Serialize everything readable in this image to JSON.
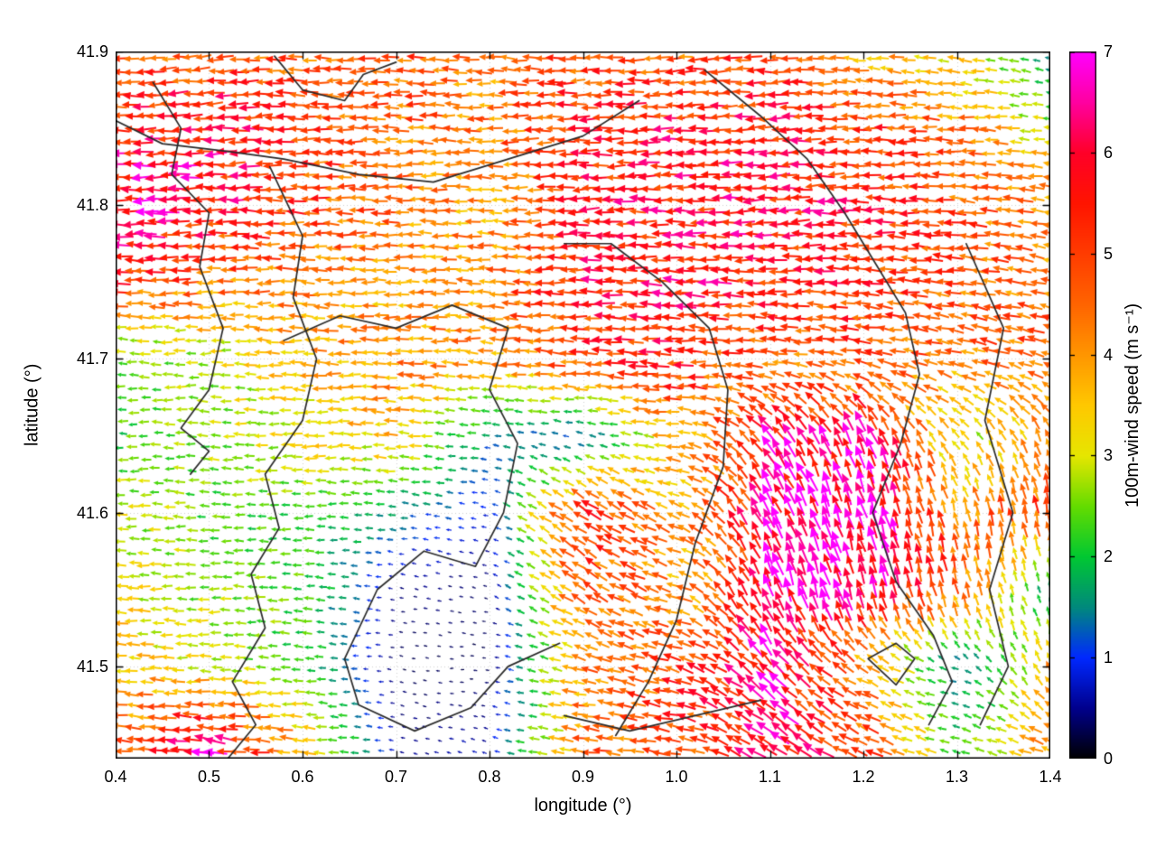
{
  "figure": {
    "background": "#ffffff"
  },
  "chart_data": {
    "type": "quiver",
    "title": "",
    "xlabel": "longitude (°)",
    "ylabel": "latitude (°)",
    "colorbar_label": "100m-wind speed (m s⁻¹)",
    "xlim": [
      0.4,
      1.4
    ],
    "ylim": [
      41.44,
      41.9
    ],
    "grid": "dotted",
    "xticks": [
      0.4,
      0.5,
      0.6,
      0.7,
      0.8,
      0.9,
      1.0,
      1.1,
      1.2,
      1.3,
      1.4
    ],
    "xtick_labels": [
      "0.4",
      "0.5",
      "0.6",
      "0.7",
      "0.8",
      "0.9",
      "1.0",
      "1.1",
      "1.2",
      "1.3",
      "1.4"
    ],
    "yticks": [
      41.5,
      41.6,
      41.7,
      41.8,
      41.9
    ],
    "ytick_labels": [
      "41.5",
      "41.6",
      "41.7",
      "41.8",
      "41.9"
    ],
    "colorbar": {
      "min": 0,
      "max": 7,
      "ticks": [
        0,
        1,
        2,
        3,
        4,
        5,
        6,
        7
      ],
      "tick_labels": [
        "0",
        "1",
        "2",
        "3",
        "4",
        "5",
        "6",
        "7"
      ],
      "stops": [
        [
          0.0,
          "#000000"
        ],
        [
          0.5,
          "#00008c"
        ],
        [
          1.0,
          "#0028ff"
        ],
        [
          1.5,
          "#00897d"
        ],
        [
          2.0,
          "#00c832"
        ],
        [
          2.5,
          "#64dc00"
        ],
        [
          3.0,
          "#e6e600"
        ],
        [
          3.5,
          "#ffc800"
        ],
        [
          4.0,
          "#ff9600"
        ],
        [
          4.5,
          "#ff6400"
        ],
        [
          5.0,
          "#ff3c00"
        ],
        [
          5.5,
          "#ff1400"
        ],
        [
          6.0,
          "#ff0028"
        ],
        [
          6.5,
          "#ff00a0"
        ],
        [
          7.0,
          "#ff00ff"
        ]
      ]
    },
    "wind_grid": {
      "lons": [
        0.4,
        0.5,
        0.6,
        0.7,
        0.8,
        0.9,
        1.0,
        1.1,
        1.2,
        1.3,
        1.4
      ],
      "lats": [
        41.45,
        41.5,
        41.55,
        41.6,
        41.65,
        41.7,
        41.75,
        41.8,
        41.85,
        41.9
      ],
      "u": [
        [
          -4.4,
          -6.3,
          -3.6,
          -0.5,
          -0.6,
          -4.4,
          -4.8,
          -5.0,
          -4.5,
          -2.0,
          -4.0
        ],
        [
          -3.6,
          -3.0,
          -2.2,
          -0.25,
          -0.3,
          -4.0,
          -5.0,
          -4.5,
          -3.5,
          -1.3,
          -1.5
        ],
        [
          -3.2,
          -2.6,
          -2.3,
          -0.5,
          -0.3,
          -4.2,
          -3.8,
          -2.2,
          -1.8,
          -1.2,
          -0.5
        ],
        [
          -3.0,
          -2.4,
          -2.2,
          -1.5,
          -0.8,
          -4.5,
          -3.5,
          -2.8,
          -2.0,
          -1.0,
          -1.0
        ],
        [
          -2.2,
          -2.6,
          -3.2,
          -3.6,
          -1.4,
          -1.0,
          -4.0,
          -3.5,
          -2.5,
          -2.0,
          -1.5
        ],
        [
          -2.3,
          -2.8,
          -3.6,
          -4.2,
          -4.0,
          -5.0,
          -5.4,
          -4.4,
          -4.8,
          -4.2,
          -4.5
        ],
        [
          -5.2,
          -4.5,
          -4.2,
          -3.8,
          -4.3,
          -5.5,
          -5.8,
          -5.5,
          -5.2,
          -4.6,
          -4.2
        ],
        [
          -6.5,
          -5.8,
          -5.0,
          -4.4,
          -3.8,
          -5.5,
          -5.6,
          -5.8,
          -5.4,
          -4.8,
          -4.2
        ],
        [
          -5.5,
          -5.8,
          -5.0,
          -4.5,
          -4.3,
          -5.3,
          -5.5,
          -5.5,
          -5.2,
          -4.3,
          -2.8
        ],
        [
          -4.5,
          -5.0,
          -4.5,
          -4.8,
          -4.2,
          -5.0,
          -4.5,
          -5.2,
          -3.8,
          -3.2,
          -1.2
        ]
      ],
      "v": [
        [
          0.4,
          0.8,
          0.3,
          0.1,
          0.2,
          0.6,
          0.8,
          3.5,
          2.2,
          0.5,
          1.5
        ],
        [
          0.3,
          0.0,
          0.2,
          0.05,
          0.0,
          1.0,
          1.5,
          4.5,
          1.8,
          0.3,
          3.5
        ],
        [
          0.2,
          0.0,
          0.2,
          0.1,
          0.1,
          2.8,
          1.0,
          6.5,
          6.4,
          4.6,
          1.5
        ],
        [
          0.0,
          0.2,
          0.0,
          0.2,
          0.2,
          3.0,
          1.5,
          5.8,
          6.5,
          4.3,
          4.8
        ],
        [
          0.0,
          0.2,
          0.0,
          0.3,
          0.2,
          0.3,
          0.5,
          5.0,
          6.0,
          2.0,
          4.0
        ],
        [
          0.2,
          0.0,
          0.2,
          0.0,
          0.3,
          0.3,
          0.2,
          0.4,
          0.8,
          1.2,
          1.5
        ],
        [
          0.3,
          0.0,
          0.2,
          0.0,
          0.2,
          0.0,
          0.5,
          0.0,
          0.3,
          0.6,
          0.8
        ],
        [
          0.0,
          0.0,
          0.2,
          0.0,
          0.2,
          -0.2,
          0.0,
          -0.3,
          0.0,
          0.4,
          0.5
        ],
        [
          0.0,
          -0.3,
          0.0,
          0.2,
          0.0,
          -0.2,
          0.0,
          -0.3,
          0.0,
          0.3,
          0.3
        ],
        [
          0.0,
          -0.5,
          0.3,
          0.0,
          0.4,
          0.0,
          -0.3,
          0.0,
          0.5,
          0.5,
          0.5
        ]
      ]
    },
    "contours": [
      [
        [
          0.44,
          41.88
        ],
        [
          0.47,
          41.85
        ],
        [
          0.46,
          41.82
        ],
        [
          0.5,
          41.795
        ],
        [
          0.49,
          41.76
        ],
        [
          0.515,
          41.72
        ],
        [
          0.5,
          41.68
        ],
        [
          0.47,
          41.655
        ],
        [
          0.5,
          41.64
        ],
        [
          0.48,
          41.625
        ]
      ],
      [
        [
          0.4,
          41.855
        ],
        [
          0.45,
          41.84
        ],
        [
          0.52,
          41.835
        ],
        [
          0.58,
          41.83
        ],
        [
          0.66,
          41.82
        ],
        [
          0.74,
          41.815
        ],
        [
          0.82,
          41.83
        ],
        [
          0.9,
          41.845
        ],
        [
          0.96,
          41.868
        ]
      ],
      [
        [
          0.57,
          41.897
        ],
        [
          0.6,
          41.875
        ],
        [
          0.645,
          41.868
        ],
        [
          0.665,
          41.885
        ],
        [
          0.7,
          41.893
        ]
      ],
      [
        [
          0.565,
          41.825
        ],
        [
          0.6,
          41.78
        ],
        [
          0.59,
          41.74
        ],
        [
          0.615,
          41.7
        ],
        [
          0.6,
          41.66
        ],
        [
          0.56,
          41.625
        ],
        [
          0.575,
          41.59
        ],
        [
          0.545,
          41.56
        ],
        [
          0.56,
          41.525
        ],
        [
          0.525,
          41.49
        ],
        [
          0.55,
          41.462
        ],
        [
          0.52,
          41.44
        ]
      ],
      [
        [
          0.58,
          41.712
        ],
        [
          0.64,
          41.728
        ],
        [
          0.7,
          41.72
        ],
        [
          0.76,
          41.735
        ],
        [
          0.82,
          41.72
        ],
        [
          0.8,
          41.68
        ],
        [
          0.83,
          41.645
        ],
        [
          0.815,
          41.6
        ],
        [
          0.785,
          41.565
        ],
        [
          0.73,
          41.575
        ],
        [
          0.68,
          41.55
        ],
        [
          0.645,
          41.505
        ],
        [
          0.66,
          41.475
        ],
        [
          0.72,
          41.458
        ],
        [
          0.78,
          41.473
        ],
        [
          0.82,
          41.5
        ],
        [
          0.875,
          41.515
        ]
      ],
      [
        [
          1.03,
          41.888
        ],
        [
          1.09,
          41.858
        ],
        [
          1.14,
          41.83
        ],
        [
          1.18,
          41.795
        ],
        [
          1.21,
          41.765
        ],
        [
          1.245,
          41.73
        ],
        [
          1.26,
          41.69
        ],
        [
          1.24,
          41.645
        ],
        [
          1.21,
          41.6
        ],
        [
          1.235,
          41.555
        ],
        [
          1.275,
          41.52
        ],
        [
          1.295,
          41.49
        ],
        [
          1.27,
          41.462
        ]
      ],
      [
        [
          0.88,
          41.775
        ],
        [
          0.93,
          41.775
        ],
        [
          0.985,
          41.75
        ],
        [
          1.035,
          41.72
        ],
        [
          1.055,
          41.68
        ],
        [
          1.05,
          41.63
        ],
        [
          1.02,
          41.58
        ],
        [
          1.0,
          41.53
        ],
        [
          0.97,
          41.49
        ],
        [
          0.935,
          41.455
        ]
      ],
      [
        [
          1.31,
          41.775
        ],
        [
          1.35,
          41.72
        ],
        [
          1.33,
          41.66
        ],
        [
          1.36,
          41.6
        ],
        [
          1.335,
          41.55
        ],
        [
          1.355,
          41.5
        ],
        [
          1.325,
          41.462
        ]
      ],
      [
        [
          1.205,
          41.505
        ],
        [
          1.235,
          41.515
        ],
        [
          1.255,
          41.505
        ],
        [
          1.235,
          41.488
        ],
        [
          1.205,
          41.505
        ]
      ],
      [
        [
          0.88,
          41.468
        ],
        [
          0.95,
          41.458
        ],
        [
          1.02,
          41.468
        ],
        [
          1.09,
          41.478
        ]
      ]
    ]
  }
}
